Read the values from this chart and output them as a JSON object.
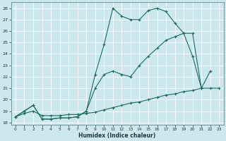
{
  "xlabel": "Humidex (Indice chaleur)",
  "bg_color": "#cce8ee",
  "grid_color": "#ffffff",
  "line_color": "#1a6b5a",
  "xlim": [
    -0.5,
    23.5
  ],
  "ylim": [
    17.8,
    28.5
  ],
  "xticks": [
    0,
    1,
    2,
    3,
    4,
    5,
    6,
    7,
    8,
    9,
    10,
    11,
    12,
    13,
    14,
    15,
    16,
    17,
    18,
    19,
    20,
    21,
    22,
    23
  ],
  "yticks": [
    18,
    19,
    20,
    21,
    22,
    23,
    24,
    25,
    26,
    27,
    28
  ],
  "line1_x": [
    0,
    1,
    2,
    3,
    4,
    5,
    6,
    7,
    8,
    9,
    10,
    11,
    12,
    13,
    14,
    15,
    16,
    17,
    18,
    19,
    20,
    21,
    22
  ],
  "line1_y": [
    18.5,
    19.0,
    19.5,
    18.3,
    18.3,
    18.4,
    18.4,
    18.5,
    19.0,
    22.2,
    24.8,
    28.0,
    27.3,
    27.0,
    27.0,
    27.8,
    28.0,
    27.7,
    26.7,
    25.8,
    23.8,
    21.0,
    22.5
  ],
  "line2_x": [
    0,
    1,
    2,
    3,
    4,
    5,
    6,
    7,
    8,
    9,
    10,
    11,
    12,
    13,
    14,
    15,
    16,
    17,
    18,
    19,
    20,
    21
  ],
  "line2_y": [
    18.5,
    19.0,
    19.5,
    18.3,
    18.3,
    18.4,
    18.4,
    18.5,
    19.0,
    21.0,
    22.2,
    22.5,
    22.2,
    22.0,
    23.0,
    23.8,
    24.5,
    25.2,
    25.5,
    25.8,
    25.8,
    21.0
  ],
  "line3_x": [
    0,
    1,
    2,
    3,
    4,
    5,
    6,
    7,
    8,
    9,
    10,
    11,
    12,
    13,
    14,
    15,
    16,
    17,
    18,
    19,
    20,
    21,
    22,
    23
  ],
  "line3_y": [
    18.5,
    18.8,
    19.0,
    18.6,
    18.6,
    18.6,
    18.7,
    18.7,
    18.8,
    18.9,
    19.1,
    19.3,
    19.5,
    19.7,
    19.8,
    20.0,
    20.2,
    20.4,
    20.5,
    20.7,
    20.8,
    21.0,
    21.0,
    21.0
  ]
}
